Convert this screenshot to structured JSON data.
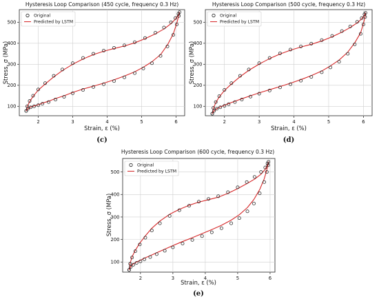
{
  "chart_data": [
    {
      "type": "scatter",
      "title": "Hysteresis Loop Comparison (450 cycle, frequency 0.3 Hz)",
      "xlabel": "Strain, ε (%)",
      "ylabel": "Stress, σ (MPa)",
      "xlim": [
        1.45,
        6.25
      ],
      "ylim": [
        55,
        560
      ],
      "xticks": [
        2,
        3,
        4,
        5,
        6
      ],
      "yticks": [
        100,
        200,
        300,
        400,
        500
      ],
      "grid": true,
      "legend_position": "top-left",
      "caption": "(c)",
      "series": [
        {
          "name": "Original",
          "style": "open-circle-markers",
          "color": "#222222",
          "x": [
            1.65,
            1.7,
            1.78,
            1.88,
            2.0,
            2.12,
            2.3,
            2.5,
            2.75,
            3.0,
            3.3,
            3.6,
            3.9,
            4.2,
            4.5,
            4.8,
            5.05,
            5.3,
            5.55,
            5.75,
            5.92,
            6.02,
            6.08,
            6.1,
            6.07,
            5.98,
            5.85,
            5.65,
            5.4,
            5.1,
            4.8,
            4.5,
            4.2,
            3.9,
            3.6,
            3.3,
            3.0,
            2.7,
            2.45,
            2.2,
            2.0,
            1.85,
            1.75,
            1.68,
            1.65
          ],
          "y": [
            78,
            88,
            95,
            100,
            105,
            112,
            120,
            132,
            145,
            162,
            178,
            192,
            205,
            220,
            238,
            258,
            280,
            305,
            340,
            385,
            440,
            490,
            530,
            548,
            540,
            520,
            500,
            475,
            450,
            425,
            405,
            390,
            378,
            365,
            350,
            330,
            305,
            275,
            245,
            210,
            180,
            150,
            125,
            100,
            78
          ]
        },
        {
          "name": "Predicted by LSTM",
          "style": "line",
          "color": "#d62728",
          "x": [
            1.65,
            1.7,
            1.78,
            1.88,
            2.0,
            2.12,
            2.3,
            2.5,
            2.75,
            3.0,
            3.3,
            3.6,
            3.9,
            4.2,
            4.5,
            4.8,
            5.05,
            5.3,
            5.55,
            5.75,
            5.92,
            6.02,
            6.08,
            6.1,
            6.07,
            5.98,
            5.85,
            5.65,
            5.4,
            5.1,
            4.8,
            4.5,
            4.2,
            3.9,
            3.6,
            3.3,
            3.0,
            2.7,
            2.45,
            2.2,
            2.0,
            1.85,
            1.75,
            1.68,
            1.65
          ],
          "y": [
            78,
            88,
            97,
            102,
            107,
            115,
            124,
            137,
            150,
            166,
            182,
            196,
            210,
            226,
            244,
            264,
            286,
            312,
            346,
            392,
            445,
            495,
            533,
            548,
            537,
            515,
            493,
            468,
            445,
            422,
            402,
            387,
            375,
            362,
            346,
            325,
            300,
            270,
            240,
            206,
            177,
            147,
            122,
            99,
            78
          ]
        }
      ]
    },
    {
      "type": "scatter",
      "title": "Hysteresis Loop Comparison (500 cycle, frequency 0.3 Hz)",
      "xlabel": "Strain, ε (%)",
      "ylabel": "Stress, σ (MPa)",
      "xlim": [
        1.45,
        6.25
      ],
      "ylim": [
        55,
        560
      ],
      "xticks": [
        2,
        3,
        4,
        5,
        6
      ],
      "yticks": [
        100,
        200,
        300,
        400,
        500
      ],
      "grid": true,
      "legend_position": "top-left",
      "caption": "(d)",
      "series": [
        {
          "name": "Original",
          "style": "open-circle-markers",
          "color": "#222222",
          "x": [
            1.65,
            1.7,
            1.78,
            1.88,
            2.0,
            2.12,
            2.3,
            2.5,
            2.75,
            3.0,
            3.3,
            3.6,
            3.9,
            4.2,
            4.5,
            4.8,
            5.05,
            5.3,
            5.55,
            5.75,
            5.92,
            6.0,
            6.05,
            6.06,
            6.03,
            5.95,
            5.82,
            5.62,
            5.38,
            5.1,
            4.8,
            4.5,
            4.2,
            3.9,
            3.6,
            3.3,
            3.0,
            2.7,
            2.45,
            2.2,
            2.0,
            1.85,
            1.75,
            1.68,
            1.65
          ],
          "y": [
            65,
            78,
            88,
            95,
            102,
            110,
            120,
            132,
            146,
            160,
            175,
            190,
            205,
            222,
            240,
            262,
            285,
            312,
            350,
            395,
            445,
            490,
            525,
            545,
            538,
            520,
            502,
            480,
            458,
            435,
            415,
            398,
            385,
            370,
            352,
            330,
            305,
            275,
            245,
            210,
            178,
            148,
            120,
            92,
            65
          ]
        },
        {
          "name": "Predicted by LSTM",
          "style": "line",
          "color": "#d62728",
          "x": [
            1.65,
            1.7,
            1.78,
            1.88,
            2.0,
            2.12,
            2.3,
            2.5,
            2.75,
            3.0,
            3.3,
            3.6,
            3.9,
            4.2,
            4.5,
            4.8,
            5.05,
            5.3,
            5.55,
            5.75,
            5.92,
            6.0,
            6.05,
            6.06,
            6.03,
            5.95,
            5.82,
            5.62,
            5.38,
            5.1,
            4.8,
            4.5,
            4.2,
            3.9,
            3.6,
            3.3,
            3.0,
            2.7,
            2.45,
            2.2,
            2.0,
            1.85,
            1.75,
            1.68,
            1.65
          ],
          "y": [
            65,
            78,
            89,
            97,
            105,
            113,
            124,
            136,
            150,
            164,
            179,
            194,
            210,
            227,
            246,
            268,
            292,
            320,
            358,
            402,
            450,
            494,
            528,
            545,
            535,
            516,
            497,
            475,
            453,
            431,
            411,
            395,
            382,
            367,
            349,
            327,
            301,
            271,
            241,
            206,
            175,
            145,
            117,
            90,
            65
          ]
        }
      ]
    },
    {
      "type": "scatter",
      "title": "Hysteresis Loop Comparison (600 cycle, frequency 0.3 Hz)",
      "xlabel": "Strain, ε (%)",
      "ylabel": "Stress, σ (MPa)",
      "xlim": [
        1.45,
        6.15
      ],
      "ylim": [
        55,
        560
      ],
      "xticks": [
        2,
        3,
        4,
        5,
        6
      ],
      "yticks": [
        100,
        200,
        300,
        400,
        500
      ],
      "grid": true,
      "legend_position": "top-left",
      "caption": "(e)",
      "series": [
        {
          "name": "Original",
          "style": "open-circle-markers",
          "color": "#222222",
          "x": [
            1.65,
            1.7,
            1.78,
            1.88,
            2.0,
            2.12,
            2.3,
            2.5,
            2.75,
            3.0,
            3.3,
            3.6,
            3.9,
            4.2,
            4.5,
            4.8,
            5.05,
            5.3,
            5.5,
            5.68,
            5.82,
            5.9,
            5.94,
            5.95,
            5.92,
            5.85,
            5.72,
            5.52,
            5.28,
            5.0,
            4.7,
            4.4,
            4.1,
            3.8,
            3.5,
            3.2,
            2.9,
            2.6,
            2.35,
            2.15,
            1.98,
            1.84,
            1.74,
            1.68,
            1.65
          ],
          "y": [
            65,
            78,
            88,
            96,
            103,
            112,
            122,
            135,
            150,
            165,
            182,
            198,
            215,
            232,
            250,
            272,
            295,
            325,
            360,
            405,
            455,
            500,
            530,
            545,
            538,
            520,
            500,
            478,
            455,
            432,
            410,
            392,
            380,
            368,
            350,
            330,
            305,
            272,
            240,
            208,
            178,
            148,
            120,
            92,
            65
          ]
        },
        {
          "name": "Predicted by LSTM",
          "style": "line",
          "color": "#d62728",
          "x": [
            1.65,
            1.7,
            1.78,
            1.88,
            2.0,
            2.12,
            2.3,
            2.5,
            2.75,
            3.0,
            3.3,
            3.6,
            3.9,
            4.2,
            4.5,
            4.8,
            5.05,
            5.3,
            5.5,
            5.68,
            5.82,
            5.9,
            5.94,
            5.95,
            5.92,
            5.85,
            5.72,
            5.52,
            5.28,
            5.0,
            4.7,
            4.4,
            4.1,
            3.8,
            3.5,
            3.2,
            2.9,
            2.6,
            2.35,
            2.15,
            1.98,
            1.84,
            1.74,
            1.68,
            1.65
          ],
          "y": [
            65,
            80,
            92,
            100,
            108,
            117,
            128,
            141,
            157,
            173,
            191,
            208,
            226,
            244,
            263,
            286,
            310,
            342,
            378,
            422,
            470,
            510,
            535,
            545,
            533,
            512,
            490,
            468,
            448,
            426,
            405,
            388,
            377,
            366,
            352,
            334,
            312,
            282,
            250,
            216,
            184,
            152,
            123,
            94,
            65
          ]
        }
      ]
    }
  ]
}
